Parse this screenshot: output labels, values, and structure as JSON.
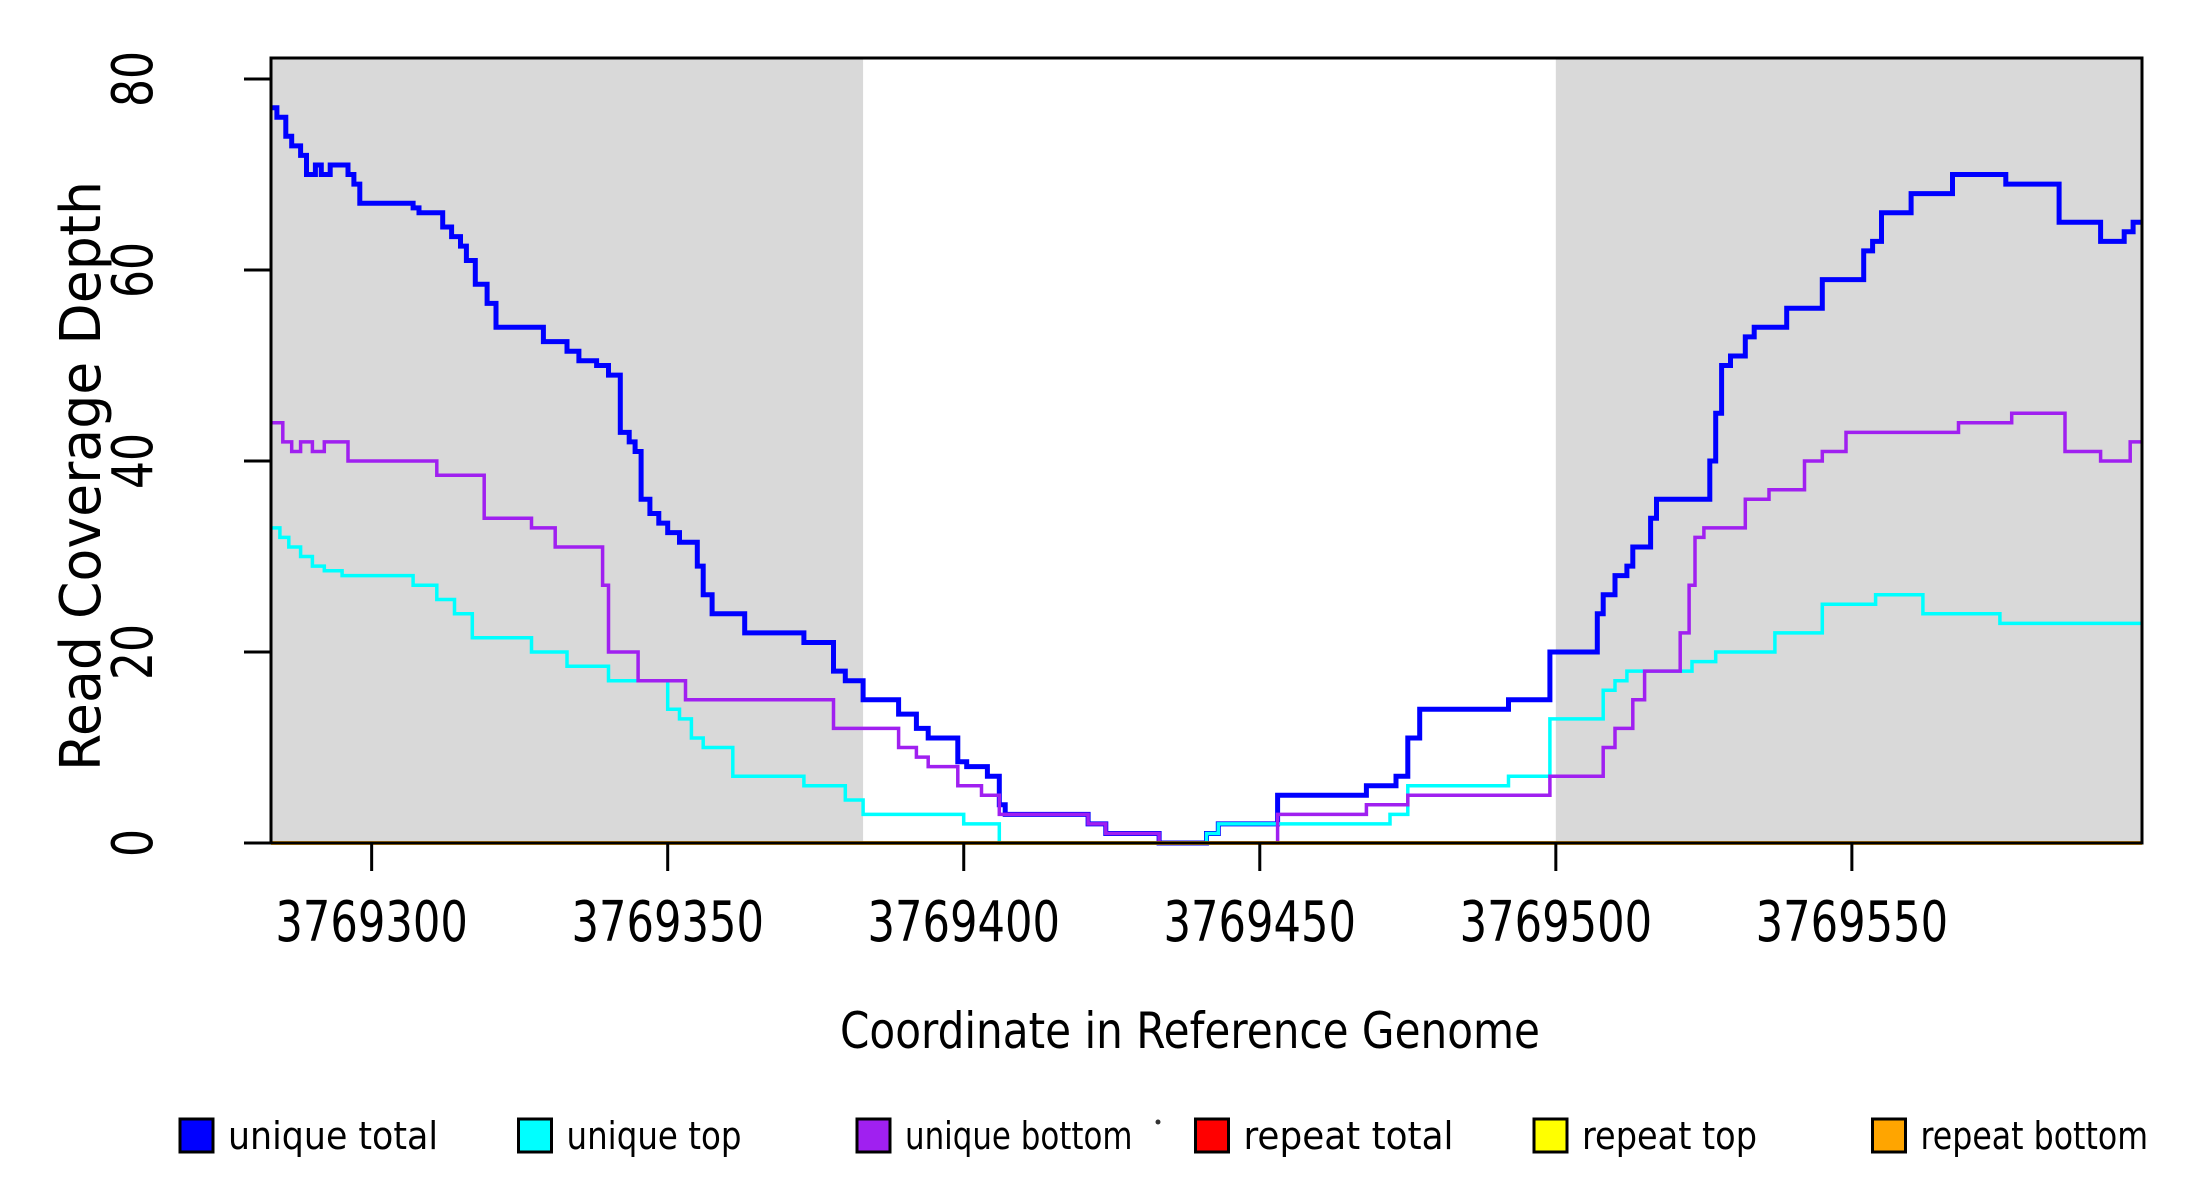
{
  "figure": {
    "background": "#FFFFFF",
    "box_color": "#000000",
    "shaded_region_color": "#D9D9D9"
  },
  "chart_data": {
    "type": "line",
    "subtype": "step-coverage",
    "title": "",
    "xlabel": "Coordinate in Reference Genome",
    "ylabel": "Read Coverage Depth",
    "xlim": [
      3769283,
      3769599
    ],
    "ylim": [
      0,
      82.2
    ],
    "x_ticks": [
      3769300,
      3769350,
      3769400,
      3769450,
      3769500,
      3769550
    ],
    "y_ticks": [
      0,
      20,
      40,
      60,
      80
    ],
    "grid": false,
    "legend_position": "bottom",
    "shaded_regions": [
      {
        "x0": 3769283,
        "x1": 3769383
      },
      {
        "x0": 3769500,
        "x1": 3769599
      }
    ],
    "series": [
      {
        "name": "unique total",
        "color": "#0000FF",
        "width": 5,
        "steps": [
          [
            3769283,
            77
          ],
          [
            3769284,
            76
          ],
          [
            3769285.5,
            74
          ],
          [
            3769286.5,
            73
          ],
          [
            3769288,
            72
          ],
          [
            3769289,
            70
          ],
          [
            3769290.5,
            71
          ],
          [
            3769291.5,
            70
          ],
          [
            3769293,
            71
          ],
          [
            3769296,
            70
          ],
          [
            3769297,
            69
          ],
          [
            3769298,
            67
          ],
          [
            3769307,
            66.5
          ],
          [
            3769308,
            66
          ],
          [
            3769312,
            64.5
          ],
          [
            3769313.5,
            63.5
          ],
          [
            3769315,
            62.5
          ],
          [
            3769316,
            61
          ],
          [
            3769317.5,
            58.5
          ],
          [
            3769319.5,
            56.5
          ],
          [
            3769321,
            54
          ],
          [
            3769329,
            52.5
          ],
          [
            3769333,
            51.5
          ],
          [
            3769335,
            50.5
          ],
          [
            3769338,
            50
          ],
          [
            3769340,
            49
          ],
          [
            3769342,
            43
          ],
          [
            3769343.5,
            42
          ],
          [
            3769344.5,
            41
          ],
          [
            3769345.5,
            36
          ],
          [
            3769347,
            34.5
          ],
          [
            3769348.5,
            33.5
          ],
          [
            3769350,
            32.5
          ],
          [
            3769352,
            31.5
          ],
          [
            3769355,
            29
          ],
          [
            3769356,
            26
          ],
          [
            3769357.5,
            24
          ],
          [
            3769363,
            22
          ],
          [
            3769373,
            21
          ],
          [
            3769378,
            18
          ],
          [
            3769380,
            17
          ],
          [
            3769383,
            15
          ],
          [
            3769389,
            13.5
          ],
          [
            3769392,
            12
          ],
          [
            3769394,
            11
          ],
          [
            3769399,
            8.5
          ],
          [
            3769400.5,
            8
          ],
          [
            3769404,
            7
          ],
          [
            3769406,
            4
          ],
          [
            3769407,
            3
          ],
          [
            3769421,
            2
          ],
          [
            3769424,
            1
          ],
          [
            3769433,
            0
          ],
          [
            3769441,
            1
          ],
          [
            3769443,
            2
          ],
          [
            3769453,
            5
          ],
          [
            3769468,
            6
          ],
          [
            3769473,
            7
          ],
          [
            3769475,
            11
          ],
          [
            3769477,
            14
          ],
          [
            3769492,
            15
          ],
          [
            3769499,
            20
          ],
          [
            3769507,
            24
          ],
          [
            3769508,
            26
          ],
          [
            3769510,
            28
          ],
          [
            3769512,
            29
          ],
          [
            3769513,
            31
          ],
          [
            3769516,
            34
          ],
          [
            3769517,
            36
          ],
          [
            3769526,
            40
          ],
          [
            3769527,
            45
          ],
          [
            3769528,
            50
          ],
          [
            3769529.5,
            51
          ],
          [
            3769532,
            53
          ],
          [
            3769533.5,
            54
          ],
          [
            3769539,
            56
          ],
          [
            3769545,
            59
          ],
          [
            3769552,
            62
          ],
          [
            3769553.5,
            63
          ],
          [
            3769555,
            66
          ],
          [
            3769560,
            68
          ],
          [
            3769567,
            70
          ],
          [
            3769576,
            69
          ],
          [
            3769585,
            65
          ],
          [
            3769592,
            63
          ],
          [
            3769596,
            64
          ],
          [
            3769597.5,
            65
          ]
        ]
      },
      {
        "name": "unique top",
        "color": "#00FFFF",
        "width": 3.5,
        "steps": [
          [
            3769283,
            33
          ],
          [
            3769284.5,
            32
          ],
          [
            3769286,
            31
          ],
          [
            3769288,
            30
          ],
          [
            3769290,
            29
          ],
          [
            3769292,
            28.5
          ],
          [
            3769295,
            28
          ],
          [
            3769307,
            27
          ],
          [
            3769311,
            25.5
          ],
          [
            3769314,
            24
          ],
          [
            3769317,
            21.5
          ],
          [
            3769327,
            20
          ],
          [
            3769333,
            18.5
          ],
          [
            3769340,
            17
          ],
          [
            3769350,
            14
          ],
          [
            3769352,
            13
          ],
          [
            3769354,
            11
          ],
          [
            3769356,
            10
          ],
          [
            3769361,
            7
          ],
          [
            3769373,
            6
          ],
          [
            3769380,
            4.5
          ],
          [
            3769383,
            3
          ],
          [
            3769400,
            2
          ],
          [
            3769406,
            0
          ],
          [
            3769441,
            1
          ],
          [
            3769443,
            2
          ],
          [
            3769472,
            3
          ],
          [
            3769475,
            6
          ],
          [
            3769492,
            7
          ],
          [
            3769499,
            13
          ],
          [
            3769508,
            16
          ],
          [
            3769510,
            17
          ],
          [
            3769512,
            18
          ],
          [
            3769523,
            19
          ],
          [
            3769527,
            20
          ],
          [
            3769537,
            22
          ],
          [
            3769545,
            25
          ],
          [
            3769554,
            26
          ],
          [
            3769562,
            24
          ],
          [
            3769575,
            23
          ]
        ]
      },
      {
        "name": "unique bottom",
        "color": "#A020F0",
        "width": 3.5,
        "steps": [
          [
            3769283,
            44
          ],
          [
            3769285,
            42
          ],
          [
            3769286.5,
            41
          ],
          [
            3769288,
            42
          ],
          [
            3769290,
            41
          ],
          [
            3769292,
            42
          ],
          [
            3769296,
            40
          ],
          [
            3769311,
            38.5
          ],
          [
            3769319,
            34
          ],
          [
            3769327,
            33
          ],
          [
            3769331,
            31
          ],
          [
            3769339,
            27
          ],
          [
            3769340,
            20
          ],
          [
            3769345,
            17
          ],
          [
            3769353,
            15
          ],
          [
            3769378,
            12
          ],
          [
            3769389,
            10
          ],
          [
            3769392,
            9
          ],
          [
            3769394,
            8
          ],
          [
            3769399,
            6
          ],
          [
            3769403,
            5
          ],
          [
            3769406,
            3
          ],
          [
            3769421,
            2
          ],
          [
            3769424,
            1
          ],
          [
            3769433,
            0
          ],
          [
            3769453,
            3
          ],
          [
            3769468,
            4
          ],
          [
            3769475,
            5
          ],
          [
            3769499,
            7
          ],
          [
            3769508,
            10
          ],
          [
            3769510,
            12
          ],
          [
            3769513,
            15
          ],
          [
            3769515,
            18
          ],
          [
            3769521,
            22
          ],
          [
            3769522.5,
            27
          ],
          [
            3769523.5,
            32
          ],
          [
            3769525,
            33
          ],
          [
            3769532,
            36
          ],
          [
            3769536,
            37
          ],
          [
            3769542,
            40
          ],
          [
            3769545,
            41
          ],
          [
            3769549,
            43
          ],
          [
            3769568,
            44
          ],
          [
            3769577,
            45
          ],
          [
            3769586,
            41
          ],
          [
            3769592,
            40
          ],
          [
            3769597,
            42
          ]
        ]
      },
      {
        "name": "repeat total",
        "color": "#FF0000",
        "width": 3.5,
        "steps": [
          [
            3769283,
            0
          ]
        ]
      },
      {
        "name": "repeat top",
        "color": "#FFFF00",
        "width": 3.5,
        "steps": [
          [
            3769283,
            0
          ]
        ]
      },
      {
        "name": "repeat bottom",
        "color": "#FFA500",
        "width": 3.5,
        "steps": [
          [
            3769283,
            0
          ]
        ]
      }
    ],
    "legend": [
      {
        "label": "unique total",
        "color": "#0000FF"
      },
      {
        "label": "unique top",
        "color": "#00FFFF"
      },
      {
        "label": "unique bottom",
        "color": "#A020F0"
      },
      {
        "label": "repeat total",
        "color": "#FF0000"
      },
      {
        "label": "repeat top",
        "color": "#FFFF00"
      },
      {
        "label": "repeat bottom",
        "color": "#FFA500"
      }
    ]
  }
}
